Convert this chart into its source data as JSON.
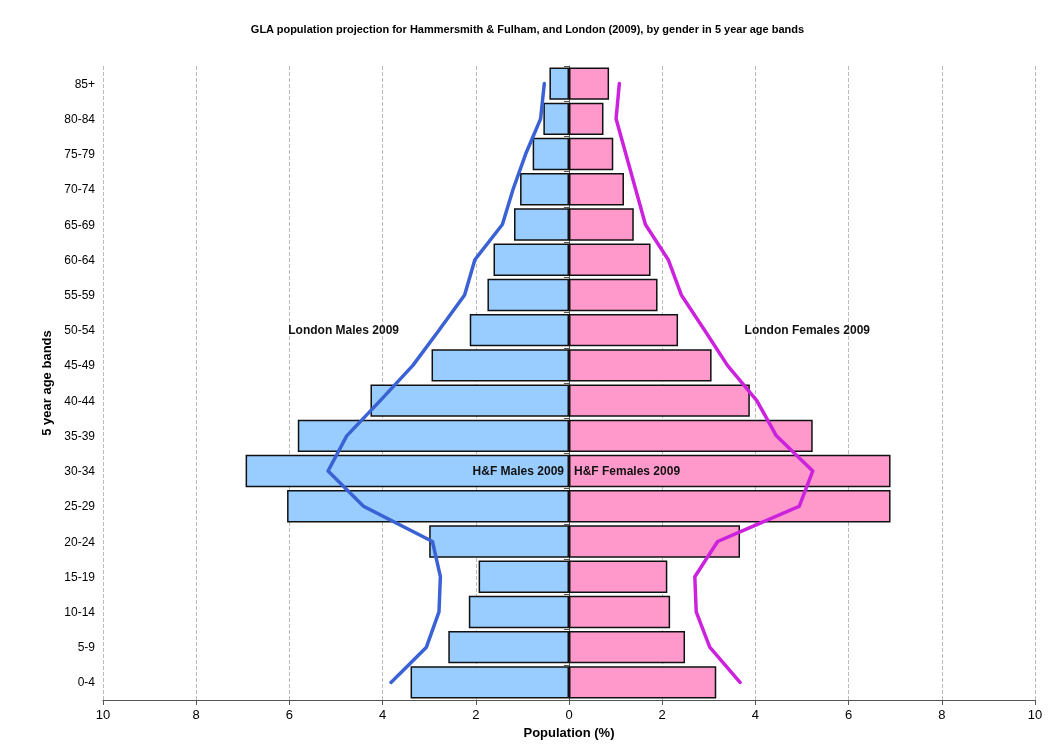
{
  "chart_data": {
    "type": "bar",
    "orientation": "horizontal",
    "stacked": true,
    "title": "GLA population projection for Hammersmith & Fulham, and London (2009), by gender in 5 year age bands",
    "xlabel": "Population (%)",
    "ylabel": "5 year age bands",
    "categories": [
      "85+",
      "80-84",
      "75-79",
      "70-74",
      "65-69",
      "60-64",
      "55-59",
      "50-54",
      "45-49",
      "40-44",
      "35-39",
      "30-34",
      "25-29",
      "20-24",
      "15-19",
      "10-14",
      "5-9",
      "0-4"
    ],
    "series": [
      {
        "type": "bar",
        "name": "H&F Males 2009",
        "color": "#99ccff",
        "values": [
          -0.42,
          -0.55,
          -0.78,
          -1.05,
          -1.18,
          -1.62,
          -1.75,
          -2.13,
          -2.95,
          -4.26,
          -5.82,
          -6.94,
          -6.05,
          -3.0,
          -1.94,
          -2.15,
          -2.59,
          -3.4
        ]
      },
      {
        "type": "bar",
        "name": "H&F Females 2009",
        "color": "#ff99cc",
        "values": [
          0.86,
          0.74,
          0.95,
          1.18,
          1.39,
          1.75,
          1.9,
          2.34,
          3.06,
          3.88,
          5.23,
          6.9,
          6.9,
          3.67,
          2.11,
          2.17,
          2.49,
          3.16
        ]
      },
      {
        "type": "line",
        "name": "London Males 2009",
        "color": "#3a62d4",
        "values": [
          -0.53,
          -0.61,
          -0.93,
          -1.2,
          -1.43,
          -2.02,
          -2.24,
          -2.79,
          -3.35,
          -4.05,
          -4.77,
          -5.17,
          -4.41,
          -2.93,
          -2.76,
          -2.79,
          -3.06,
          -3.82
        ]
      },
      {
        "type": "line",
        "name": "London Females 2009",
        "color": "#cc22dd",
        "values": [
          1.08,
          1.01,
          1.22,
          1.43,
          1.64,
          2.13,
          2.41,
          2.91,
          3.4,
          4.03,
          4.45,
          5.23,
          4.94,
          3.19,
          2.7,
          2.73,
          3.02,
          3.67
        ]
      }
    ],
    "xlim": [
      -10,
      10
    ],
    "xticks": [
      {
        "value": -10,
        "label": "10"
      },
      {
        "value": -8,
        "label": "8"
      },
      {
        "value": -6,
        "label": "6"
      },
      {
        "value": -4,
        "label": "4"
      },
      {
        "value": -2,
        "label": "2"
      },
      0,
      2,
      4,
      6,
      8,
      10
    ],
    "grid": "x",
    "marker": "none",
    "line_style": "solid"
  }
}
